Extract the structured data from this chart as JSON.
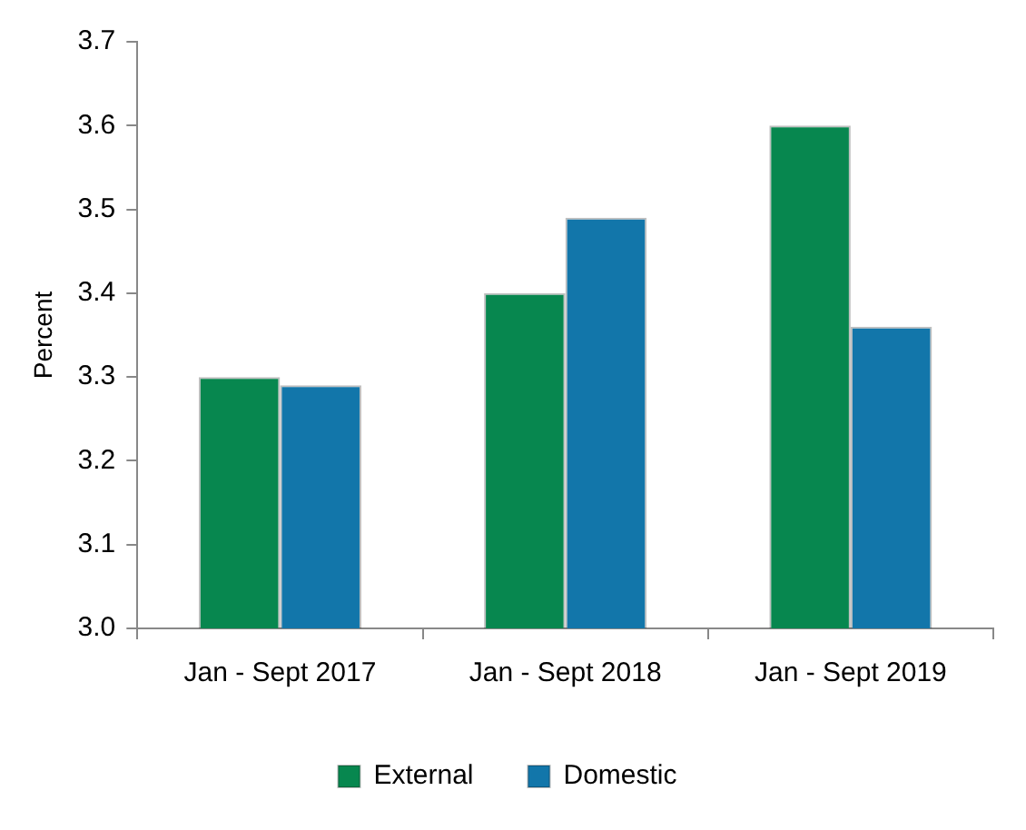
{
  "chart_data": {
    "type": "bar",
    "ylabel": "Percent",
    "categories": [
      "Jan - Sept 2017",
      "Jan - Sept 2018",
      "Jan - Sept 2019"
    ],
    "series": [
      {
        "name": "External",
        "color": "#07874f",
        "values": [
          3.3,
          3.4,
          3.6
        ]
      },
      {
        "name": "Domestic",
        "color": "#1276aa",
        "values": [
          3.29,
          3.49,
          3.36
        ]
      }
    ],
    "ylim": [
      3.0,
      3.7
    ],
    "yticks": [
      {
        "value": 3.0,
        "label": "3.0"
      },
      3.1,
      3.2,
      3.3,
      3.4,
      3.5,
      3.6,
      3.7
    ],
    "grid": false,
    "legend": "bottom"
  }
}
